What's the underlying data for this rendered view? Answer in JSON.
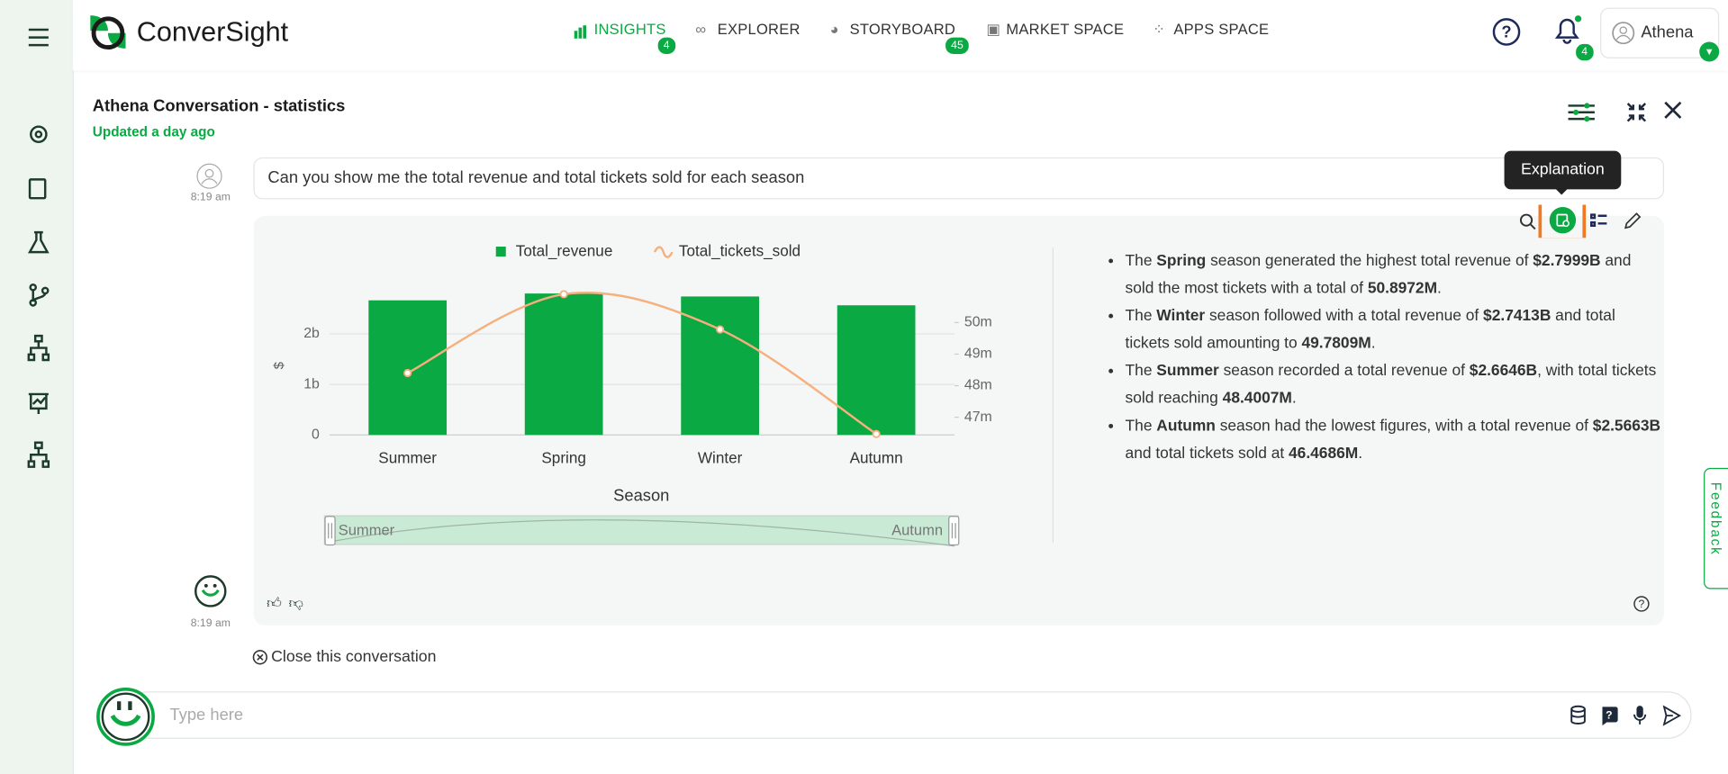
{
  "header": {
    "logo": "ConverSight",
    "nav": [
      {
        "label": "INSIGHTS",
        "badge": "4"
      },
      {
        "label": "EXPLORER"
      },
      {
        "label": "STORYBOARD",
        "badge": "45"
      },
      {
        "label": "MARKET SPACE"
      },
      {
        "label": "APPS SPACE"
      }
    ],
    "notifications": "4",
    "user": "Athena"
  },
  "conversation": {
    "title": "Athena Conversation - statistics",
    "updated": "Updated a day ago",
    "question": "Can you show me the total revenue and total tickets sold for each season",
    "question_time": "8:19 am",
    "answer_time": "8:19 am",
    "tooltip": "Explanation",
    "explanation": [
      [
        "The ",
        "Spring",
        " season generated the highest total revenue of ",
        "$2.7999B",
        " and sold the most tickets with a total of ",
        "50.8972M",
        "."
      ],
      [
        "The ",
        "Winter",
        " season followed with a total revenue of ",
        "$2.7413B",
        " and total tickets sold amounting to ",
        "49.7809M",
        "."
      ],
      [
        "The ",
        "Summer",
        " season recorded a total revenue of ",
        "$2.6646B",
        ", with total tickets sold reaching ",
        "48.4007M",
        "."
      ],
      [
        "The ",
        "Autumn",
        " season had the lowest figures, with a total revenue of ",
        "$2.5663B",
        " and total tickets sold at ",
        "46.4686M",
        "."
      ]
    ],
    "close": "Close this conversation",
    "input_placeholder": "Type here",
    "feedback": "Feedback"
  },
  "chart_data": {
    "type": "bar",
    "x_label": "Season",
    "y_label": "$",
    "categories": [
      "Summer",
      "Spring",
      "Winter",
      "Autumn"
    ],
    "series": [
      {
        "name": "Total_revenue",
        "type": "bar",
        "color": "#0aa944",
        "values": [
          2.6646,
          2.7999,
          2.7413,
          2.5663
        ]
      },
      {
        "name": "Total_tickets_sold",
        "type": "line",
        "color": "#f6b07e",
        "axis": "y2",
        "values": [
          48.4007,
          50.8972,
          49.7809,
          46.4686
        ]
      }
    ],
    "ylim": [
      0,
      2.9
    ],
    "yticks": [
      0,
      {
        "value": 1,
        "label": "1b"
      },
      {
        "value": 2,
        "label": "2b"
      }
    ],
    "y2lim": [
      46.44,
      51.08
    ],
    "y2ticks": [
      {
        "value": 47,
        "label": "47m"
      },
      {
        "value": 48,
        "label": "48m"
      },
      {
        "value": 49,
        "label": "49m"
      },
      {
        "value": 50,
        "label": "50m"
      }
    ],
    "grid": true,
    "legend": "top"
  }
}
